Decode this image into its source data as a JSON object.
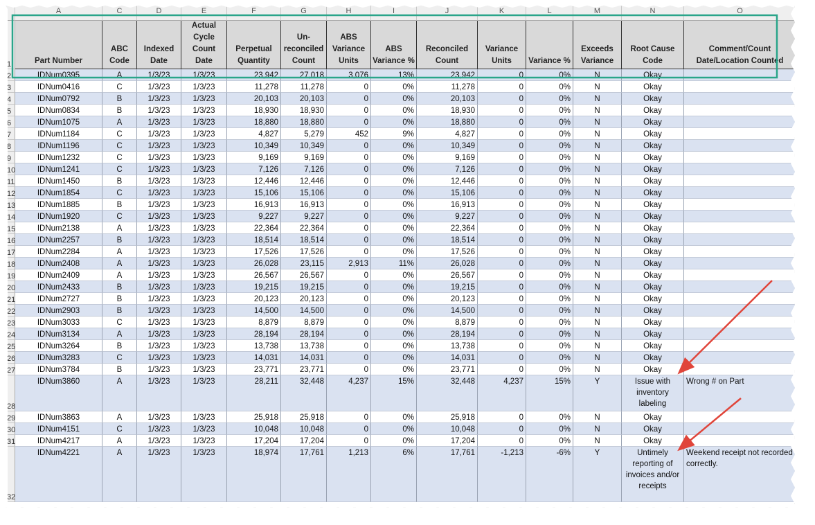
{
  "sheet": {
    "column_letters": [
      "A",
      "C",
      "D",
      "E",
      "F",
      "G",
      "H",
      "I",
      "J",
      "K",
      "L",
      "M",
      "N",
      "O"
    ],
    "header_row_number": "1",
    "headers": [
      "Part Number",
      "ABC Code",
      "Indexed Date",
      "Actual Cycle Count Date",
      "Perpetual Quantity",
      "Un-reconciled Count",
      "ABS Variance Units",
      "ABS Variance %",
      "Reconciled Count",
      "Variance Units",
      "Variance %",
      "Exceeds Variance",
      "Root Cause Code",
      "Comment/Count Date/Location Counted"
    ],
    "rows": [
      {
        "number": "2",
        "cells": [
          "IDNum0395",
          "A",
          "1/3/23",
          "1/3/23",
          "23,942",
          "27,018",
          "3,076",
          "13%",
          "23,942",
          "0",
          "0%",
          "N",
          "Okay"
        ]
      },
      {
        "number": "3",
        "cells": [
          "IDNum0416",
          "C",
          "1/3/23",
          "1/3/23",
          "11,278",
          "11,278",
          "0",
          "0%",
          "11,278",
          "0",
          "0%",
          "N",
          "Okay"
        ]
      },
      {
        "number": "4",
        "cells": [
          "IDNum0792",
          "B",
          "1/3/23",
          "1/3/23",
          "20,103",
          "20,103",
          "0",
          "0%",
          "20,103",
          "0",
          "0%",
          "N",
          "Okay"
        ]
      },
      {
        "number": "5",
        "cells": [
          "IDNum0834",
          "B",
          "1/3/23",
          "1/3/23",
          "18,930",
          "18,930",
          "0",
          "0%",
          "18,930",
          "0",
          "0%",
          "N",
          "Okay"
        ]
      },
      {
        "number": "6",
        "cells": [
          "IDNum1075",
          "A",
          "1/3/23",
          "1/3/23",
          "18,880",
          "18,880",
          "0",
          "0%",
          "18,880",
          "0",
          "0%",
          "N",
          "Okay"
        ]
      },
      {
        "number": "7",
        "cells": [
          "IDNum1184",
          "C",
          "1/3/23",
          "1/3/23",
          "4,827",
          "5,279",
          "452",
          "9%",
          "4,827",
          "0",
          "0%",
          "N",
          "Okay"
        ]
      },
      {
        "number": "8",
        "cells": [
          "IDNum1196",
          "C",
          "1/3/23",
          "1/3/23",
          "10,349",
          "10,349",
          "0",
          "0%",
          "10,349",
          "0",
          "0%",
          "N",
          "Okay"
        ]
      },
      {
        "number": "9",
        "cells": [
          "IDNum1232",
          "C",
          "1/3/23",
          "1/3/23",
          "9,169",
          "9,169",
          "0",
          "0%",
          "9,169",
          "0",
          "0%",
          "N",
          "Okay"
        ]
      },
      {
        "number": "10",
        "cells": [
          "IDNum1241",
          "C",
          "1/3/23",
          "1/3/23",
          "7,126",
          "7,126",
          "0",
          "0%",
          "7,126",
          "0",
          "0%",
          "N",
          "Okay"
        ]
      },
      {
        "number": "11",
        "cells": [
          "IDNum1450",
          "B",
          "1/3/23",
          "1/3/23",
          "12,446",
          "12,446",
          "0",
          "0%",
          "12,446",
          "0",
          "0%",
          "N",
          "Okay"
        ]
      },
      {
        "number": "12",
        "cells": [
          "IDNum1854",
          "C",
          "1/3/23",
          "1/3/23",
          "15,106",
          "15,106",
          "0",
          "0%",
          "15,106",
          "0",
          "0%",
          "N",
          "Okay"
        ]
      },
      {
        "number": "13",
        "cells": [
          "IDNum1885",
          "B",
          "1/3/23",
          "1/3/23",
          "16,913",
          "16,913",
          "0",
          "0%",
          "16,913",
          "0",
          "0%",
          "N",
          "Okay"
        ]
      },
      {
        "number": "14",
        "cells": [
          "IDNum1920",
          "C",
          "1/3/23",
          "1/3/23",
          "9,227",
          "9,227",
          "0",
          "0%",
          "9,227",
          "0",
          "0%",
          "N",
          "Okay"
        ]
      },
      {
        "number": "15",
        "cells": [
          "IDNum2138",
          "A",
          "1/3/23",
          "1/3/23",
          "22,364",
          "22,364",
          "0",
          "0%",
          "22,364",
          "0",
          "0%",
          "N",
          "Okay"
        ]
      },
      {
        "number": "16",
        "cells": [
          "IDNum2257",
          "B",
          "1/3/23",
          "1/3/23",
          "18,514",
          "18,514",
          "0",
          "0%",
          "18,514",
          "0",
          "0%",
          "N",
          "Okay"
        ]
      },
      {
        "number": "17",
        "cells": [
          "IDNum2284",
          "A",
          "1/3/23",
          "1/3/23",
          "17,526",
          "17,526",
          "0",
          "0%",
          "17,526",
          "0",
          "0%",
          "N",
          "Okay"
        ]
      },
      {
        "number": "18",
        "cells": [
          "IDNum2408",
          "A",
          "1/3/23",
          "1/3/23",
          "26,028",
          "23,115",
          "2,913",
          "11%",
          "26,028",
          "0",
          "0%",
          "N",
          "Okay"
        ]
      },
      {
        "number": "19",
        "cells": [
          "IDNum2409",
          "A",
          "1/3/23",
          "1/3/23",
          "26,567",
          "26,567",
          "0",
          "0%",
          "26,567",
          "0",
          "0%",
          "N",
          "Okay"
        ]
      },
      {
        "number": "20",
        "cells": [
          "IDNum2433",
          "B",
          "1/3/23",
          "1/3/23",
          "19,215",
          "19,215",
          "0",
          "0%",
          "19,215",
          "0",
          "0%",
          "N",
          "Okay"
        ]
      },
      {
        "number": "21",
        "cells": [
          "IDNum2727",
          "B",
          "1/3/23",
          "1/3/23",
          "20,123",
          "20,123",
          "0",
          "0%",
          "20,123",
          "0",
          "0%",
          "N",
          "Okay"
        ]
      },
      {
        "number": "22",
        "cells": [
          "IDNum2903",
          "B",
          "1/3/23",
          "1/3/23",
          "14,500",
          "14,500",
          "0",
          "0%",
          "14,500",
          "0",
          "0%",
          "N",
          "Okay"
        ]
      },
      {
        "number": "23",
        "cells": [
          "IDNum3033",
          "C",
          "1/3/23",
          "1/3/23",
          "8,879",
          "8,879",
          "0",
          "0%",
          "8,879",
          "0",
          "0%",
          "N",
          "Okay"
        ]
      },
      {
        "number": "24",
        "cells": [
          "IDNum3134",
          "A",
          "1/3/23",
          "1/3/23",
          "28,194",
          "28,194",
          "0",
          "0%",
          "28,194",
          "0",
          "0%",
          "N",
          "Okay"
        ]
      },
      {
        "number": "25",
        "cells": [
          "IDNum3264",
          "B",
          "1/3/23",
          "1/3/23",
          "13,738",
          "13,738",
          "0",
          "0%",
          "13,738",
          "0",
          "0%",
          "N",
          "Okay"
        ]
      },
      {
        "number": "26",
        "cells": [
          "IDNum3283",
          "C",
          "1/3/23",
          "1/3/23",
          "14,031",
          "14,031",
          "0",
          "0%",
          "14,031",
          "0",
          "0%",
          "N",
          "Okay"
        ]
      },
      {
        "number": "27",
        "cells": [
          "IDNum3784",
          "B",
          "1/3/23",
          "1/3/23",
          "23,771",
          "23,771",
          "0",
          "0%",
          "23,771",
          "0",
          "0%",
          "N",
          "Okay"
        ]
      },
      {
        "number": "28",
        "cells": [
          "IDNum3860",
          "A",
          "1/3/23",
          "1/3/23",
          "28,211",
          "32,448",
          "4,237",
          "15%",
          "32,448",
          "4,237",
          "15%",
          "Y",
          "Issue with inventory labeling",
          "Wrong # on Part"
        ]
      },
      {
        "number": "29",
        "cells": [
          "IDNum3863",
          "A",
          "1/3/23",
          "1/3/23",
          "25,918",
          "25,918",
          "0",
          "0%",
          "25,918",
          "0",
          "0%",
          "N",
          "Okay"
        ]
      },
      {
        "number": "30",
        "cells": [
          "IDNum4151",
          "C",
          "1/3/23",
          "1/3/23",
          "10,048",
          "10,048",
          "0",
          "0%",
          "10,048",
          "0",
          "0%",
          "N",
          "Okay"
        ]
      },
      {
        "number": "31",
        "cells": [
          "IDNum4217",
          "A",
          "1/3/23",
          "1/3/23",
          "17,204",
          "17,204",
          "0",
          "0%",
          "17,204",
          "0",
          "0%",
          "N",
          "Okay"
        ]
      },
      {
        "number": "32",
        "cells": [
          "IDNum4221",
          "A",
          "1/3/23",
          "1/3/23",
          "18,974",
          "17,761",
          "1,213",
          "6%",
          "17,761",
          "-1,213",
          "-6%",
          "Y",
          "Untimely reporting of invoices and/or receipts",
          "Weekend receipt not recorded correctly."
        ]
      }
    ]
  }
}
